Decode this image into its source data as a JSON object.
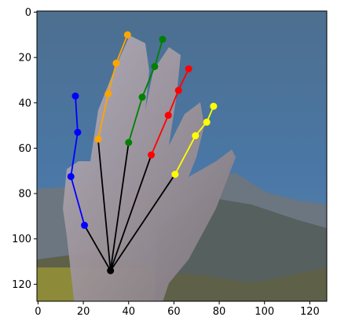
{
  "chart_data": {
    "type": "scatter",
    "title": "",
    "xlabel": "",
    "ylabel": "",
    "xlim": [
      -0.5,
      127.5
    ],
    "ylim": [
      127.5,
      -0.5
    ],
    "x_ticks": [
      0,
      20,
      40,
      60,
      80,
      100,
      120
    ],
    "y_ticks": [
      0,
      20,
      40,
      60,
      80,
      100,
      120
    ],
    "x_tick_labels": [
      "0",
      "20",
      "40",
      "60",
      "80",
      "100",
      "120"
    ],
    "y_tick_labels": [
      "0",
      "20",
      "40",
      "60",
      "80",
      "100",
      "120"
    ],
    "grid": false,
    "background": "pixelated photo of an open hand against a blue sky with mountains",
    "wrist": {
      "x": 32,
      "y": 114
    },
    "palm_color": "#000000",
    "fingers": [
      {
        "color": "#0000ff",
        "points": [
          [
            20.5,
            94
          ],
          [
            14.5,
            72.5
          ],
          [
            17.5,
            53
          ],
          [
            16.5,
            37
          ]
        ]
      },
      {
        "color": "#ffa500",
        "points": [
          [
            26.5,
            56
          ],
          [
            31,
            36
          ],
          [
            34.5,
            22.5
          ],
          [
            39.5,
            10
          ]
        ]
      },
      {
        "color": "#008000",
        "points": [
          [
            40,
            57.5
          ],
          [
            46,
            37.5
          ],
          [
            51.5,
            24
          ],
          [
            55,
            12
          ]
        ]
      },
      {
        "color": "#ff0000",
        "points": [
          [
            50,
            63
          ],
          [
            57.5,
            45.5
          ],
          [
            62,
            34.5
          ],
          [
            66.5,
            25
          ]
        ]
      },
      {
        "color": "#ffff00",
        "points": [
          [
            60.5,
            71.5
          ],
          [
            69.5,
            54.5
          ],
          [
            74.5,
            48.5
          ],
          [
            77.5,
            41.5
          ]
        ]
      }
    ]
  }
}
